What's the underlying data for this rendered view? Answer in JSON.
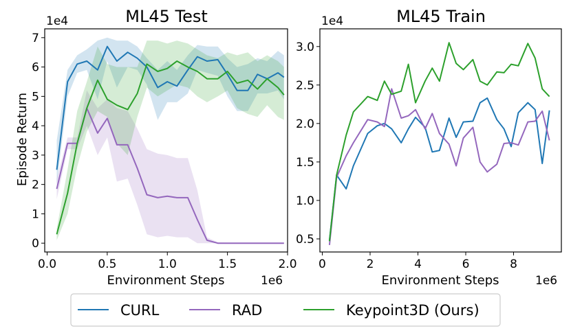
{
  "chart_data": [
    {
      "type": "line",
      "title": "ML45 Test",
      "xlabel": "Environment Steps",
      "ylabel": "Episode Return",
      "x_multiplier": "1e6",
      "y_multiplier": "1e4",
      "xlim": [
        -0.02,
        2.0
      ],
      "ylim": [
        -0.3,
        7.3
      ],
      "xticks": [
        0.0,
        0.5,
        1.0,
        1.5,
        2.0
      ],
      "xtick_labels": [
        "0.0",
        "0.5",
        "1.0",
        "1.5",
        "2.0"
      ],
      "yticks": [
        0,
        1,
        2,
        3,
        4,
        5,
        6,
        7
      ],
      "ytick_labels": [
        "0",
        "1",
        "2",
        "3",
        "4",
        "5",
        "6",
        "7"
      ],
      "series": [
        {
          "name": "CURL",
          "color": "#1f77b4",
          "x": [
            0.08,
            0.17,
            0.25,
            0.33,
            0.42,
            0.5,
            0.58,
            0.67,
            0.75,
            0.83,
            0.92,
            1.0,
            1.08,
            1.17,
            1.25,
            1.33,
            1.42,
            1.5,
            1.58,
            1.67,
            1.75,
            1.83,
            1.92,
            1.97
          ],
          "y": [
            2.5,
            5.5,
            6.1,
            6.2,
            5.9,
            6.7,
            6.2,
            6.5,
            6.3,
            6.0,
            5.3,
            5.5,
            5.35,
            5.9,
            6.35,
            6.2,
            6.25,
            5.75,
            5.2,
            5.2,
            5.75,
            5.6,
            5.8,
            5.65
          ],
          "upper": [
            3.5,
            5.9,
            6.4,
            6.6,
            6.9,
            7.0,
            6.9,
            6.9,
            6.7,
            6.3,
            5.9,
            6.2,
            5.9,
            6.4,
            6.75,
            6.7,
            6.7,
            6.3,
            6.0,
            6.1,
            6.3,
            6.2,
            6.55,
            6.4
          ],
          "lower": [
            2.0,
            5.0,
            5.8,
            5.9,
            4.9,
            6.2,
            5.3,
            6.0,
            5.9,
            5.4,
            4.2,
            4.8,
            4.8,
            5.1,
            5.9,
            5.8,
            5.7,
            5.0,
            4.5,
            4.5,
            5.1,
            5.1,
            5.2,
            4.9
          ]
        },
        {
          "name": "RAD",
          "color": "#9467bd",
          "x": [
            0.08,
            0.17,
            0.25,
            0.33,
            0.42,
            0.5,
            0.58,
            0.67,
            0.75,
            0.83,
            0.92,
            1.0,
            1.08,
            1.17,
            1.25,
            1.33,
            1.42,
            1.5,
            1.58,
            1.67,
            1.75,
            1.83,
            1.92,
            1.97
          ],
          "y": [
            1.85,
            3.4,
            3.4,
            4.6,
            3.75,
            4.25,
            3.35,
            3.35,
            2.55,
            1.65,
            1.55,
            1.6,
            1.55,
            1.55,
            0.8,
            0.1,
            0.0,
            0.0,
            0.0,
            0.0,
            0.0,
            0.0,
            0.0,
            0.0
          ],
          "upper": [
            2.2,
            3.6,
            3.6,
            5.2,
            4.6,
            4.9,
            4.6,
            4.5,
            3.9,
            3.2,
            3.05,
            3.0,
            2.9,
            2.9,
            1.8,
            0.2,
            0.03,
            0.02,
            0.02,
            0.02,
            0.02,
            0.02,
            0.02,
            0.02
          ],
          "lower": [
            1.5,
            3.2,
            3.2,
            4.0,
            3.0,
            3.6,
            2.1,
            2.2,
            1.3,
            0.3,
            0.2,
            0.25,
            0.2,
            0.2,
            0.0,
            0.0,
            0.0,
            0.0,
            0.0,
            0.0,
            0.0,
            0.0,
            0.0,
            0.0
          ]
        },
        {
          "name": "Keypoint3D (Ours)",
          "color": "#2ca02c",
          "x": [
            0.08,
            0.17,
            0.25,
            0.33,
            0.42,
            0.5,
            0.58,
            0.67,
            0.75,
            0.83,
            0.92,
            1.0,
            1.08,
            1.17,
            1.25,
            1.33,
            1.42,
            1.5,
            1.58,
            1.67,
            1.75,
            1.83,
            1.92,
            1.97
          ],
          "y": [
            0.3,
            1.7,
            3.4,
            4.6,
            5.55,
            4.9,
            4.7,
            4.55,
            5.1,
            6.1,
            5.85,
            5.95,
            6.2,
            6.0,
            5.85,
            5.6,
            5.6,
            5.85,
            5.45,
            5.55,
            5.25,
            5.6,
            5.3,
            5.05
          ],
          "upper": [
            0.5,
            2.5,
            4.5,
            5.5,
            6.7,
            6.1,
            6.0,
            6.0,
            6.0,
            6.9,
            6.9,
            6.8,
            6.9,
            6.8,
            6.6,
            6.4,
            6.3,
            6.5,
            6.4,
            6.5,
            6.2,
            6.4,
            6.2,
            6.0
          ],
          "lower": [
            0.1,
            1.0,
            2.6,
            3.8,
            4.5,
            4.3,
            3.4,
            3.0,
            4.3,
            5.3,
            5.0,
            5.2,
            5.4,
            5.3,
            5.0,
            4.8,
            5.0,
            5.2,
            4.6,
            4.4,
            4.3,
            4.7,
            4.3,
            4.2
          ]
        }
      ]
    },
    {
      "type": "line",
      "title": "ML45 Train",
      "xlabel": "Environment Steps",
      "ylabel": "",
      "x_multiplier": "1e6",
      "y_multiplier": "1e4",
      "xlim": [
        -0.1,
        10.0
      ],
      "ylim": [
        0.33,
        3.23
      ],
      "xticks": [
        0,
        2,
        4,
        6,
        8
      ],
      "xtick_labels": [
        "0",
        "2",
        "4",
        "6",
        "8"
      ],
      "yticks": [
        0.5,
        1.0,
        1.5,
        2.0,
        2.5,
        3.0
      ],
      "ytick_labels": [
        "0.5",
        "1.0",
        "1.5",
        "2.0",
        "2.5",
        "3.0"
      ],
      "series": [
        {
          "name": "CURL",
          "color": "#1f77b4",
          "x": [
            0.3,
            0.6,
            1.0,
            1.3,
            1.9,
            2.3,
            2.6,
            2.9,
            3.3,
            3.6,
            3.9,
            4.3,
            4.6,
            4.9,
            5.3,
            5.6,
            5.9,
            6.3,
            6.6,
            6.9,
            7.3,
            7.6,
            7.9,
            8.2,
            8.6,
            8.9,
            9.2,
            9.5
          ],
          "y": [
            0.48,
            1.33,
            1.15,
            1.45,
            1.87,
            1.97,
            2.0,
            1.93,
            1.75,
            1.93,
            2.08,
            1.95,
            1.63,
            1.65,
            2.07,
            1.82,
            2.02,
            2.03,
            2.27,
            2.33,
            2.05,
            1.93,
            1.7,
            2.14,
            2.27,
            2.18,
            1.48,
            2.17
          ]
        },
        {
          "name": "RAD",
          "color": "#9467bd",
          "x": [
            0.3,
            0.6,
            1.0,
            1.3,
            1.9,
            2.3,
            2.6,
            2.9,
            3.3,
            3.6,
            3.9,
            4.3,
            4.6,
            4.9,
            5.3,
            5.6,
            5.9,
            6.3,
            6.6,
            6.9,
            7.3,
            7.6,
            7.9,
            8.2,
            8.6,
            8.9,
            9.2,
            9.5
          ],
          "y": [
            0.42,
            1.3,
            1.58,
            1.75,
            2.05,
            2.02,
            1.96,
            2.45,
            2.07,
            2.1,
            2.18,
            1.93,
            2.13,
            1.87,
            1.73,
            1.45,
            1.81,
            1.95,
            1.5,
            1.37,
            1.47,
            1.74,
            1.75,
            1.72,
            2.02,
            2.03,
            2.16,
            1.78
          ]
        },
        {
          "name": "Keypoint3D (Ours)",
          "color": "#2ca02c",
          "x": [
            0.3,
            0.6,
            1.0,
            1.3,
            1.9,
            2.3,
            2.6,
            2.9,
            3.3,
            3.6,
            3.9,
            4.3,
            4.6,
            4.9,
            5.3,
            5.6,
            5.9,
            6.3,
            6.6,
            6.9,
            7.3,
            7.6,
            7.9,
            8.2,
            8.6,
            8.9,
            9.2,
            9.5
          ],
          "y": [
            0.47,
            1.33,
            1.85,
            2.15,
            2.35,
            2.3,
            2.55,
            2.38,
            2.42,
            2.77,
            2.27,
            2.55,
            2.72,
            2.55,
            3.05,
            2.78,
            2.7,
            2.83,
            2.55,
            2.5,
            2.67,
            2.66,
            2.77,
            2.75,
            3.04,
            2.85,
            2.45,
            2.35
          ]
        }
      ]
    }
  ],
  "legend": {
    "position": "bottom-center",
    "entries": [
      {
        "label": "CURL",
        "color": "#1f77b4"
      },
      {
        "label": "RAD",
        "color": "#9467bd"
      },
      {
        "label": "Keypoint3D (Ours)",
        "color": "#2ca02c"
      }
    ]
  }
}
